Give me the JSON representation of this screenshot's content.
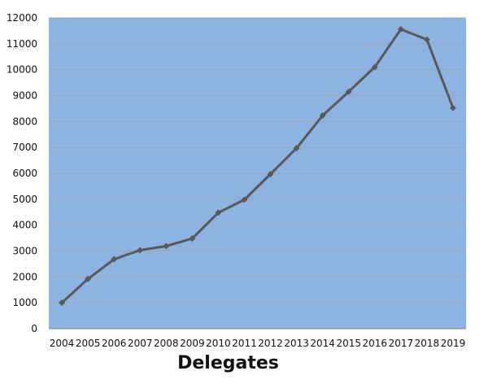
{
  "chart_data": {
    "type": "line",
    "title": "",
    "xlabel": "Delegates",
    "ylabel": "",
    "categories": [
      "2004",
      "2005",
      "2006",
      "2007",
      "2008",
      "2009",
      "2010",
      "2011",
      "2012",
      "2013",
      "2014",
      "2015",
      "2016",
      "2017",
      "2018",
      "2019"
    ],
    "series": [
      {
        "values": [
          1000,
          1920,
          2680,
          3030,
          3190,
          3480,
          4480,
          4980,
          5970,
          6970,
          8230,
          9150,
          10100,
          11560,
          11160,
          8520
        ]
      }
    ],
    "ylim": [
      0,
      12000
    ],
    "yticks": [
      "0",
      "1000",
      "2000",
      "3000",
      "4000",
      "5000",
      "6000",
      "7000",
      "8000",
      "9000",
      "10000",
      "11000",
      "12000"
    ],
    "grid": true,
    "legend": "none",
    "colors": {
      "plot_background": "#8DB3E2",
      "line": "#595959",
      "gridline": "#a6a6a6",
      "axis": "#808080"
    }
  }
}
